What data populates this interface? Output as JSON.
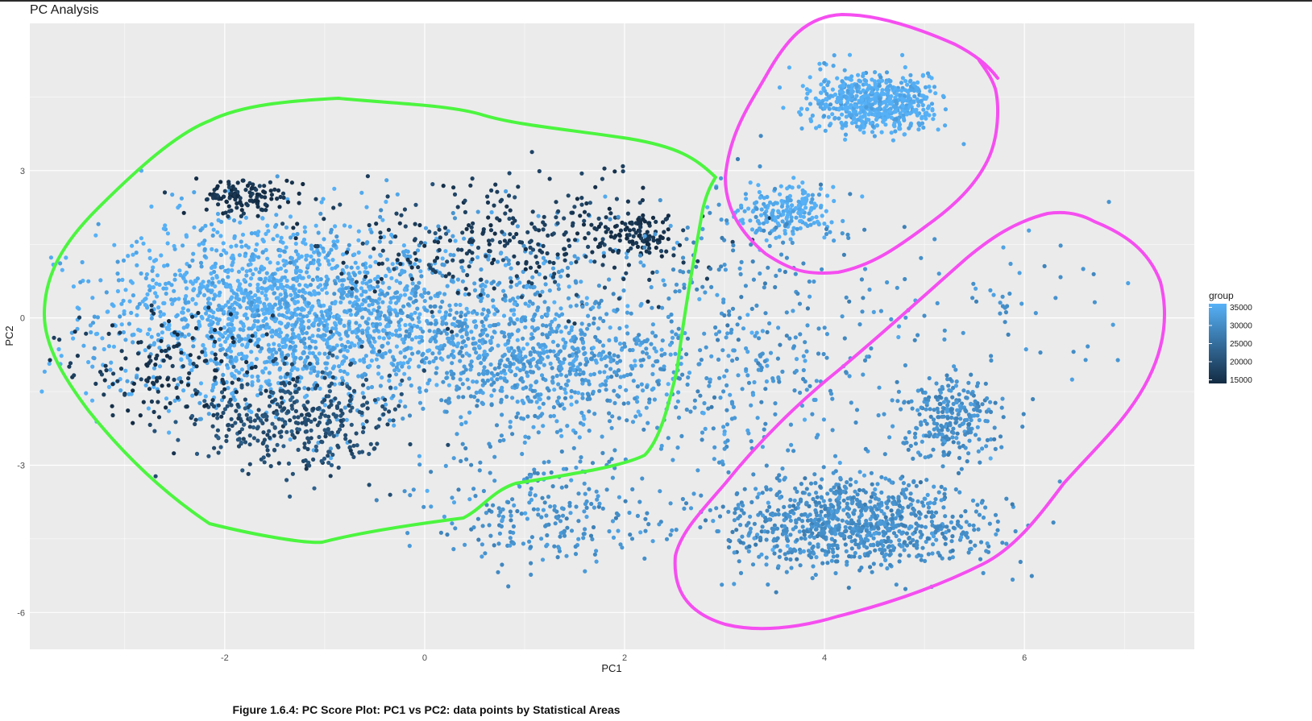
{
  "title": "PC Analysis",
  "caption": "Figure 1.6.4: PC Score Plot: PC1 vs PC2: data points by Statistical Areas",
  "colors": {
    "panel": "#ebebeb",
    "grid": "#ffffff",
    "low": "#132b43",
    "high": "#56b1f7",
    "green_outline": "#4cf53f",
    "magenta_outline": "#f54ef0"
  },
  "chart_data": {
    "type": "scatter",
    "title": "PC Analysis",
    "xlabel": "PC1",
    "ylabel": "PC2",
    "xlim": [
      -3.95,
      7.7
    ],
    "ylim": [
      -6.75,
      6
    ],
    "x_ticks": [
      -2,
      0,
      2,
      4,
      6
    ],
    "y_ticks": [
      -6,
      -3,
      0,
      3
    ],
    "x_tick_labels": [
      "-2",
      "0",
      "2",
      "4",
      "6"
    ],
    "y_tick_labels": [
      "-6",
      "-3",
      "0",
      "3"
    ],
    "grid": true,
    "legend": {
      "title": "group",
      "position": "right",
      "type": "continuous",
      "range": [
        14000,
        36000
      ],
      "labels": [
        35000,
        30000,
        25000,
        20000,
        15000
      ]
    },
    "clusters": [
      {
        "center": [
          -1.55,
          0.15
        ],
        "spread": [
          0.85,
          0.95
        ],
        "group": 35500,
        "n": 1500
      },
      {
        "center": [
          0.35,
          -0.15
        ],
        "spread": [
          1.1,
          0.9
        ],
        "group": 33000,
        "n": 900
      },
      {
        "center": [
          1.3,
          -1.05
        ],
        "spread": [
          0.65,
          0.55
        ],
        "group": 32500,
        "n": 420
      },
      {
        "center": [
          -1.3,
          -2.1
        ],
        "spread": [
          0.5,
          0.55
        ],
        "group": 20000,
        "n": 380
      },
      {
        "center": [
          -1.8,
          2.5
        ],
        "spread": [
          0.25,
          0.18
        ],
        "group": 15500,
        "n": 120
      },
      {
        "center": [
          0.9,
          1.6
        ],
        "spread": [
          0.9,
          0.6
        ],
        "group": 17000,
        "n": 320
      },
      {
        "center": [
          2.1,
          1.7
        ],
        "spread": [
          0.18,
          0.25
        ],
        "group": 15000,
        "n": 90
      },
      {
        "center": [
          -2.6,
          -1.0
        ],
        "spread": [
          0.5,
          0.6
        ],
        "group": 15500,
        "n": 150
      },
      {
        "center": [
          4.5,
          4.4
        ],
        "spread": [
          0.33,
          0.3
        ],
        "group": 35500,
        "n": 600
      },
      {
        "center": [
          3.6,
          2.2
        ],
        "spread": [
          0.25,
          0.25
        ],
        "group": 35500,
        "n": 200
      },
      {
        "center": [
          4.3,
          -4.2
        ],
        "spread": [
          0.65,
          0.45
        ],
        "group": 30500,
        "n": 900
      },
      {
        "center": [
          5.3,
          -2.0
        ],
        "spread": [
          0.25,
          0.4
        ],
        "group": 30500,
        "n": 250
      },
      {
        "center": [
          1.2,
          -4.0
        ],
        "spread": [
          0.6,
          0.6
        ],
        "group": 31000,
        "n": 250
      },
      {
        "center": [
          3.3,
          -1.4
        ],
        "spread": [
          0.8,
          1.0
        ],
        "group": 31500,
        "n": 260
      },
      {
        "center": [
          5.7,
          0.3
        ],
        "spread": [
          0.8,
          0.8
        ],
        "group": 31000,
        "n": 60
      },
      {
        "center": [
          3.2,
          1.0
        ],
        "spread": [
          0.8,
          0.9
        ],
        "group": 30500,
        "n": 140
      }
    ],
    "annotations": [
      {
        "shape": "freehand-outline",
        "color": "green",
        "encloses": "left cluster group"
      },
      {
        "shape": "freehand-outline",
        "color": "magenta",
        "encloses": "upper-right clusters"
      },
      {
        "shape": "freehand-outline",
        "color": "magenta",
        "encloses": "lower-right clusters"
      }
    ]
  }
}
